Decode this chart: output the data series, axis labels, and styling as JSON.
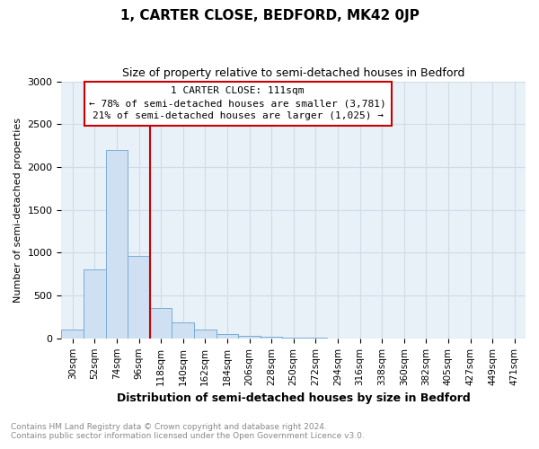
{
  "title": "1, CARTER CLOSE, BEDFORD, MK42 0JP",
  "subtitle": "Size of property relative to semi-detached houses in Bedford",
  "xlabel": "Distribution of semi-detached houses by size in Bedford",
  "ylabel": "Number of semi-detached properties",
  "bar_color": "#cfe0f3",
  "bar_edge_color": "#7aadd4",
  "annotation_line_color": "#cc0000",
  "annotation_box_color": "#cc0000",
  "annotation_title": "1 CARTER CLOSE: 111sqm",
  "annotation_line1": "← 78% of semi-detached houses are smaller (3,781)",
  "annotation_line2": "21% of semi-detached houses are larger (1,025) →",
  "categories": [
    "30sqm",
    "52sqm",
    "74sqm",
    "96sqm",
    "118sqm",
    "140sqm",
    "162sqm",
    "184sqm",
    "206sqm",
    "228sqm",
    "250sqm",
    "272sqm",
    "294sqm",
    "316sqm",
    "338sqm",
    "360sqm",
    "382sqm",
    "405sqm",
    "427sqm",
    "449sqm",
    "471sqm"
  ],
  "values": [
    100,
    800,
    2200,
    960,
    350,
    190,
    100,
    55,
    30,
    18,
    10,
    5,
    3,
    3,
    2,
    2,
    1,
    1,
    1,
    1,
    1
  ],
  "ylim": [
    0,
    3000
  ],
  "yticks": [
    0,
    500,
    1000,
    1500,
    2000,
    2500,
    3000
  ],
  "vline_index": 4,
  "footer_line1": "Contains HM Land Registry data © Crown copyright and database right 2024.",
  "footer_line2": "Contains public sector information licensed under the Open Government Licence v3.0.",
  "grid_color": "#d0dce8",
  "plot_bg_color": "#e8f0f8"
}
